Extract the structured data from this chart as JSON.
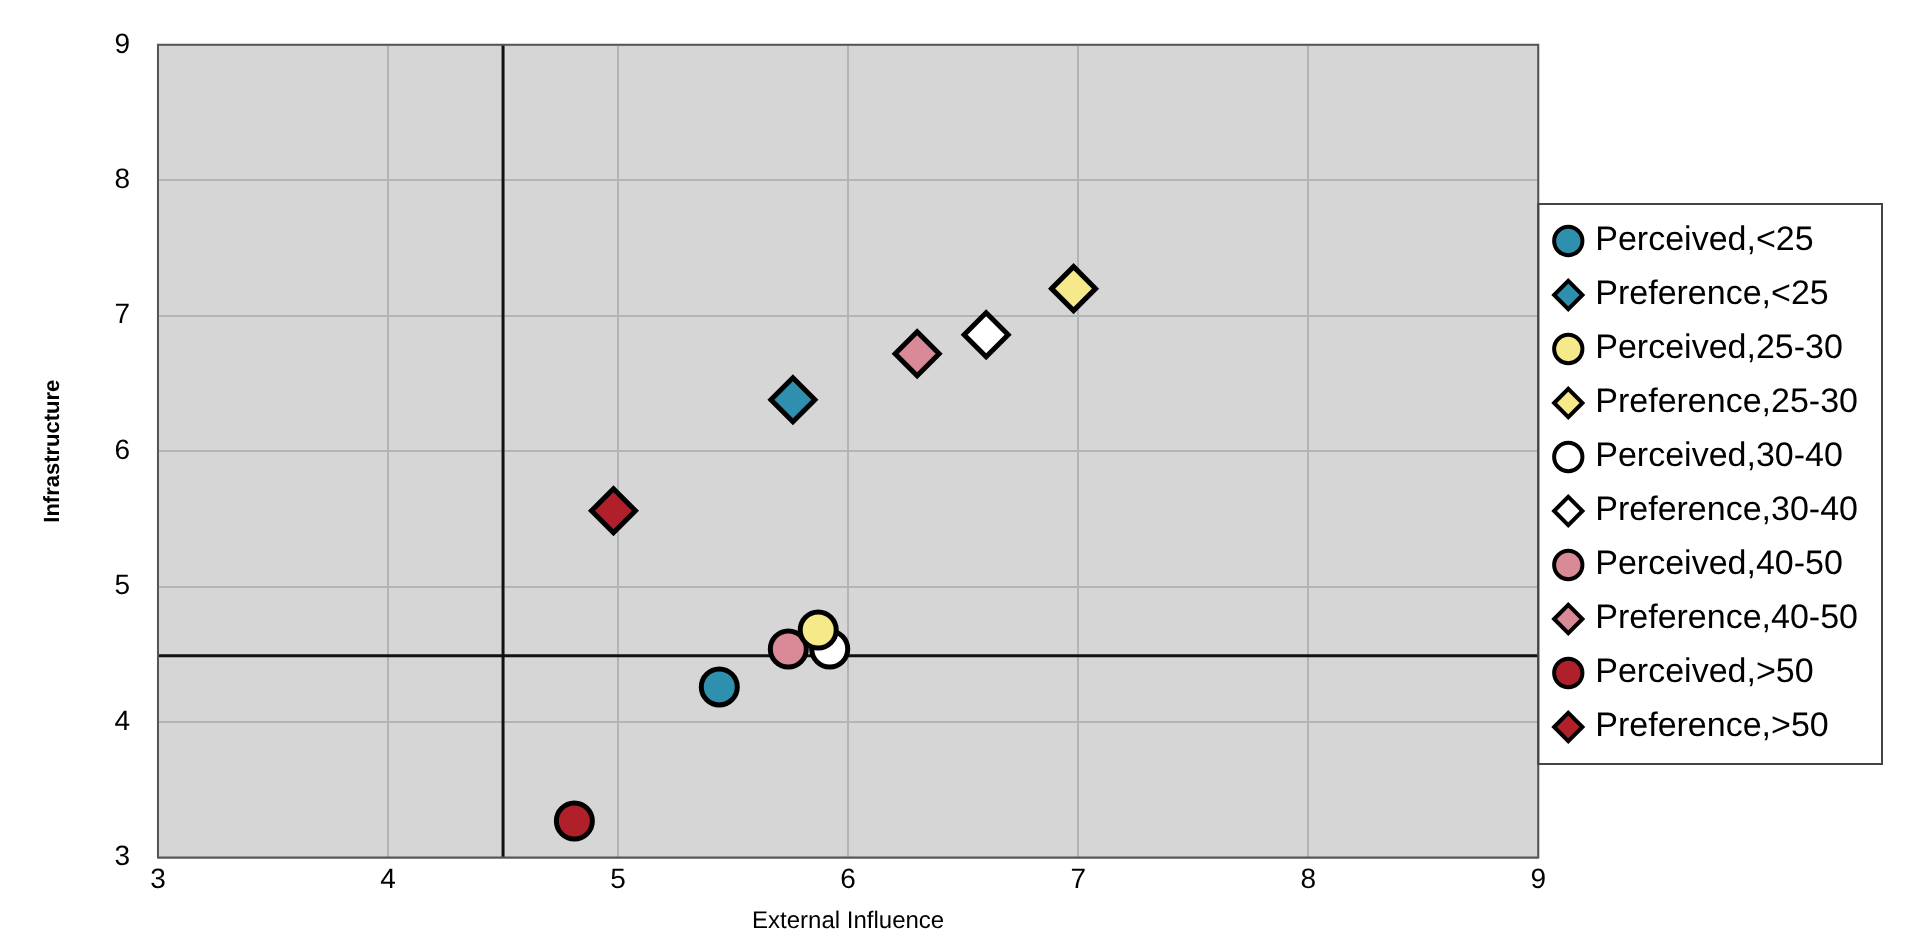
{
  "chart_data": {
    "type": "scatter",
    "xlabel": "External Influence",
    "ylabel": "Infrastructure",
    "xlim": [
      3,
      9
    ],
    "xticks": [
      3,
      4,
      5,
      6,
      7,
      8,
      9
    ],
    "ylim": [
      3,
      9
    ],
    "yticks": [
      3,
      4,
      5,
      6,
      7,
      8,
      9
    ],
    "grid": true,
    "legend": "right",
    "ref_lines": [
      {
        "axis": "x",
        "value": 4.5
      },
      {
        "axis": "y",
        "value": 4.49
      }
    ],
    "series": [
      {
        "name": "Perceived,<25",
        "color": "#2e8fae",
        "marker": "circle",
        "x": [
          5.44
        ],
        "values": [
          4.26
        ]
      },
      {
        "name": "Preference,<25",
        "color": "#2e8fae",
        "marker": "diamond",
        "x": [
          5.76
        ],
        "values": [
          6.38
        ]
      },
      {
        "name": "Perceived,25-30",
        "color": "#f5e98a",
        "marker": "circle",
        "x": [
          5.87
        ],
        "values": [
          4.68
        ]
      },
      {
        "name": "Preference,25-30",
        "color": "#f5e98a",
        "marker": "diamond",
        "x": [
          6.98
        ],
        "values": [
          7.2
        ]
      },
      {
        "name": "Perceived,30-40",
        "color": "#ffffff",
        "marker": "circle",
        "x": [
          5.92
        ],
        "values": [
          4.54
        ]
      },
      {
        "name": "Preference,30-40",
        "color": "#ffffff",
        "marker": "diamond",
        "x": [
          6.6
        ],
        "values": [
          6.86
        ]
      },
      {
        "name": "Perceived,40-50",
        "color": "#d98a96",
        "marker": "circle",
        "x": [
          5.74
        ],
        "values": [
          4.54
        ]
      },
      {
        "name": "Preference,40-50",
        "color": "#d98a96",
        "marker": "diamond",
        "x": [
          6.3
        ],
        "values": [
          6.72
        ]
      },
      {
        "name": "Perceived,>50",
        "color": "#b0202a",
        "marker": "circle",
        "x": [
          4.81
        ],
        "values": [
          3.27
        ]
      },
      {
        "name": "Preference,>50",
        "color": "#b0202a",
        "marker": "diamond",
        "x": [
          4.98
        ],
        "values": [
          5.56
        ]
      }
    ]
  }
}
